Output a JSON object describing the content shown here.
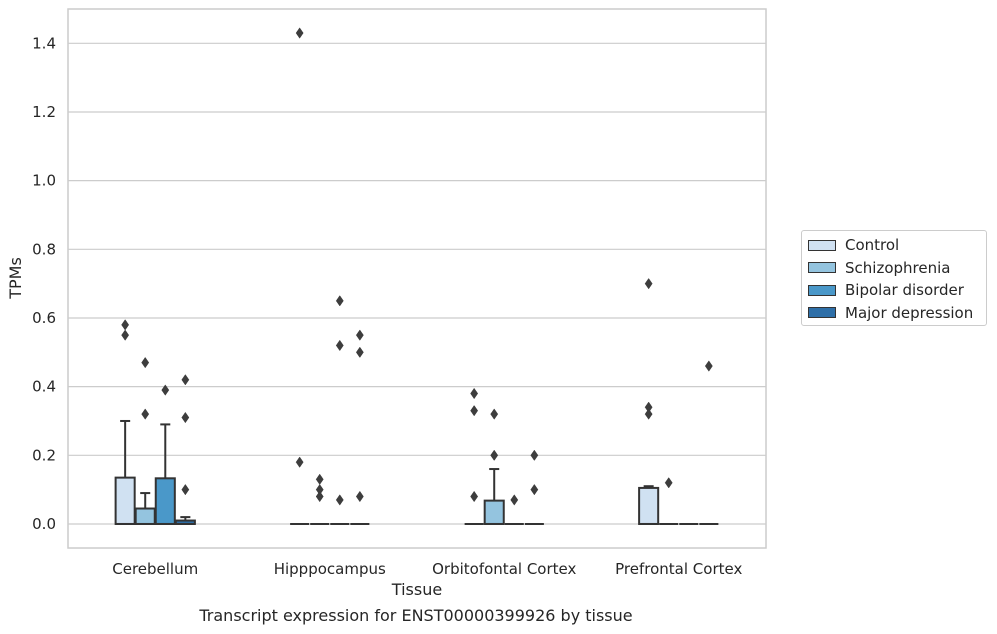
{
  "caption": "Transcript expression for ENST00000399926 by tissue",
  "colors": {
    "Control": "#d0e1f2",
    "Schizophrenia": "#94c4df",
    "Bipolar disorder": "#4a98c9",
    "Major depression": "#2e6fa8",
    "grid": "#cccccc",
    "edge": "#333333"
  },
  "chart_data": {
    "type": "boxplot",
    "xlabel": "Tissue",
    "ylabel": "TPMs",
    "ylim": [
      -0.07,
      1.5
    ],
    "yticks": [
      0.0,
      0.2,
      0.4,
      0.6,
      0.8,
      1.0,
      1.2,
      1.4
    ],
    "ytick_labels": [
      "0.0",
      "0.2",
      "0.4",
      "0.6",
      "0.8",
      "1.0",
      "1.2",
      "1.4"
    ],
    "grid": "horizontal",
    "legend_position": "right",
    "categories": [
      "Cerebellum",
      "Hipppocampus",
      "Orbitofontal Cortex",
      "Prefrontal Cortex"
    ],
    "series": [
      {
        "name": "Control",
        "boxes": [
          {
            "q1": 0.0,
            "median": 0.0,
            "q3": 0.135,
            "whisker_low": 0.0,
            "whisker_high": 0.3,
            "outliers": [
              0.58,
              0.55
            ]
          },
          {
            "q1": 0.0,
            "median": 0.0,
            "q3": 0.0,
            "whisker_low": 0.0,
            "whisker_high": 0.0,
            "outliers": [
              1.43,
              0.18
            ]
          },
          {
            "q1": 0.0,
            "median": 0.0,
            "q3": 0.0,
            "whisker_low": 0.0,
            "whisker_high": 0.0,
            "outliers": [
              0.38,
              0.33,
              0.08
            ]
          },
          {
            "q1": 0.0,
            "median": 0.0,
            "q3": 0.105,
            "whisker_low": 0.0,
            "whisker_high": 0.11,
            "outliers": [
              0.7,
              0.34,
              0.32
            ]
          }
        ]
      },
      {
        "name": "Schizophrenia",
        "boxes": [
          {
            "q1": 0.0,
            "median": 0.0,
            "q3": 0.045,
            "whisker_low": 0.0,
            "whisker_high": 0.09,
            "outliers": [
              0.47,
              0.32
            ]
          },
          {
            "q1": 0.0,
            "median": 0.0,
            "q3": 0.0,
            "whisker_low": 0.0,
            "whisker_high": 0.0,
            "outliers": [
              0.13,
              0.1,
              0.08
            ]
          },
          {
            "q1": 0.0,
            "median": 0.0,
            "q3": 0.068,
            "whisker_low": 0.0,
            "whisker_high": 0.16,
            "outliers": [
              0.32,
              0.2
            ]
          },
          {
            "q1": 0.0,
            "median": 0.0,
            "q3": 0.0,
            "whisker_low": 0.0,
            "whisker_high": 0.0,
            "outliers": [
              0.12
            ]
          }
        ]
      },
      {
        "name": "Bipolar disorder",
        "boxes": [
          {
            "q1": 0.0,
            "median": 0.0,
            "q3": 0.133,
            "whisker_low": 0.0,
            "whisker_high": 0.29,
            "outliers": [
              0.39
            ]
          },
          {
            "q1": 0.0,
            "median": 0.0,
            "q3": 0.0,
            "whisker_low": 0.0,
            "whisker_high": 0.0,
            "outliers": [
              0.65,
              0.52,
              0.07
            ]
          },
          {
            "q1": 0.0,
            "median": 0.0,
            "q3": 0.0,
            "whisker_low": 0.0,
            "whisker_high": 0.0,
            "outliers": [
              0.07
            ]
          },
          {
            "q1": 0.0,
            "median": 0.0,
            "q3": 0.0,
            "whisker_low": 0.0,
            "whisker_high": 0.0,
            "outliers": []
          }
        ]
      },
      {
        "name": "Major depression",
        "boxes": [
          {
            "q1": 0.0,
            "median": 0.0,
            "q3": 0.01,
            "whisker_low": 0.0,
            "whisker_high": 0.02,
            "outliers": [
              0.42,
              0.31,
              0.1
            ]
          },
          {
            "q1": 0.0,
            "median": 0.0,
            "q3": 0.0,
            "whisker_low": 0.0,
            "whisker_high": 0.0,
            "outliers": [
              0.55,
              0.5,
              0.08
            ]
          },
          {
            "q1": 0.0,
            "median": 0.0,
            "q3": 0.0,
            "whisker_low": 0.0,
            "whisker_high": 0.0,
            "outliers": [
              0.2,
              0.1
            ]
          },
          {
            "q1": 0.0,
            "median": 0.0,
            "q3": 0.0,
            "whisker_low": 0.0,
            "whisker_high": 0.0,
            "outliers": [
              0.46
            ]
          }
        ]
      }
    ]
  }
}
